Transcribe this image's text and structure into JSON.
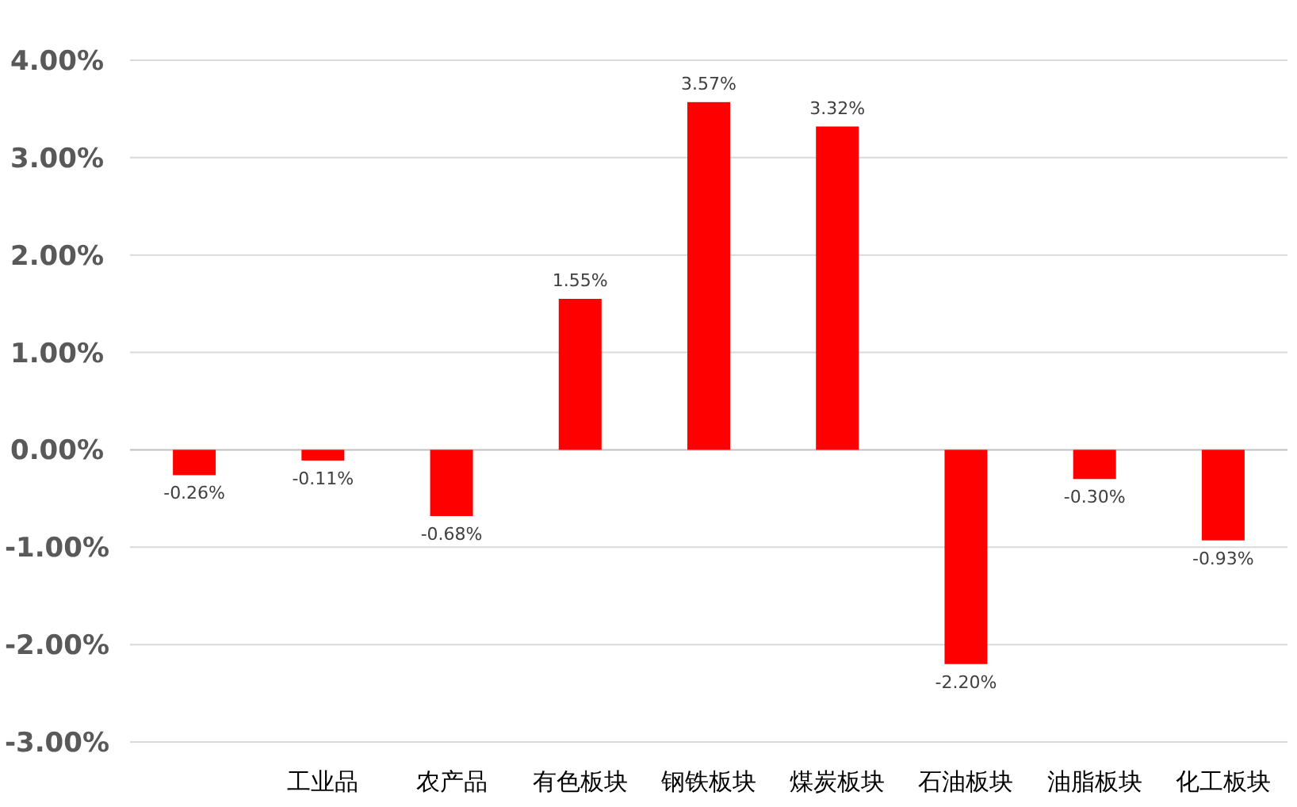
{
  "chart_data": {
    "type": "bar",
    "categories": [
      null,
      "工业品",
      "农产品",
      "有色板块",
      "钢铁板块",
      "煤炭板块",
      "石油板块",
      "油脂板块",
      "化工板块"
    ],
    "values": [
      -0.26,
      -0.11,
      -0.68,
      1.55,
      3.57,
      3.32,
      -2.2,
      -0.3,
      -0.93
    ],
    "value_labels": [
      "-0.26%",
      "-0.11%",
      "-0.68%",
      "1.55%",
      "3.57%",
      "3.32%",
      "-2.20%",
      "-0.30%",
      "-0.93%"
    ],
    "color": "#ff0000",
    "ylim": [
      -3,
      4
    ],
    "yticks": [
      {
        "value": -3,
        "label": "-3.00%"
      },
      {
        "value": -2,
        "label": "-2.00%"
      },
      {
        "value": -1,
        "label": "-1.00%"
      },
      {
        "value": 0,
        "label": "0.00%"
      },
      {
        "value": 1,
        "label": "1.00%"
      },
      {
        "value": 2,
        "label": "2.00%"
      },
      {
        "value": 3,
        "label": "3.00%"
      },
      {
        "value": 4,
        "label": "4.00%"
      }
    ],
    "grid": "y"
  }
}
